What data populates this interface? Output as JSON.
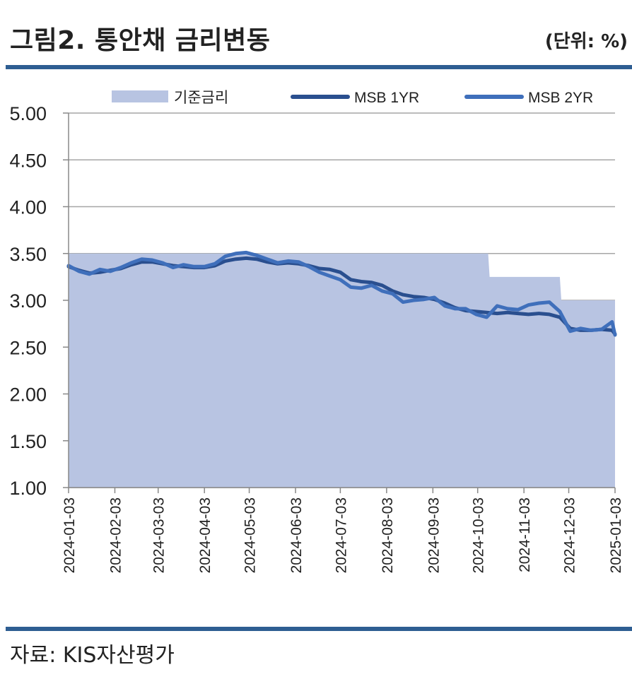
{
  "header": {
    "title": "그림2. 통안채 금리변동",
    "unit": "(단위: %)"
  },
  "footer": {
    "source": "자료: KIS자산평가"
  },
  "colors": {
    "base_fill": "#b8c4e2",
    "msb1": "#2a4f8f",
    "msb2": "#3f6fbb",
    "rule": "#2e5e92",
    "grid": "#a6a6a6"
  },
  "chart_data": {
    "type": "line",
    "title": "통안채 금리변동",
    "xlabel": "",
    "ylabel": "",
    "ylim": [
      1.0,
      5.0
    ],
    "yticks": [
      "1.00",
      "1.50",
      "2.00",
      "2.50",
      "3.00",
      "3.50",
      "4.00",
      "4.50",
      "5.00"
    ],
    "xticks": [
      "2024-01-03",
      "2024-02-03",
      "2024-03-03",
      "2024-04-03",
      "2024-05-03",
      "2024-06-03",
      "2024-07-03",
      "2024-08-03",
      "2024-09-03",
      "2024-10-03",
      "2024-11-03",
      "2024-12-03",
      "2025-01-03"
    ],
    "grid": true,
    "legend": "top",
    "base_rate": {
      "name": "기준금리",
      "type": "area",
      "steps": [
        {
          "from": "2024-01-03",
          "to": "2024-10-10",
          "value": 3.5
        },
        {
          "from": "2024-10-11",
          "to": "2024-11-27",
          "value": 3.25
        },
        {
          "from": "2024-11-28",
          "to": "2025-01-03",
          "value": 3.0
        }
      ]
    },
    "series": [
      {
        "name": "MSB 1YR",
        "dates": [
          "2024-01-03",
          "2024-01-10",
          "2024-01-17",
          "2024-01-24",
          "2024-01-31",
          "2024-02-07",
          "2024-02-14",
          "2024-02-21",
          "2024-02-28",
          "2024-03-06",
          "2024-03-13",
          "2024-03-20",
          "2024-03-27",
          "2024-04-03",
          "2024-04-10",
          "2024-04-17",
          "2024-04-24",
          "2024-05-01",
          "2024-05-08",
          "2024-05-15",
          "2024-05-22",
          "2024-05-29",
          "2024-06-05",
          "2024-06-12",
          "2024-06-19",
          "2024-06-26",
          "2024-07-03",
          "2024-07-10",
          "2024-07-17",
          "2024-07-24",
          "2024-07-31",
          "2024-08-07",
          "2024-08-14",
          "2024-08-21",
          "2024-08-28",
          "2024-09-04",
          "2024-09-11",
          "2024-09-18",
          "2024-09-25",
          "2024-10-02",
          "2024-10-09",
          "2024-10-16",
          "2024-10-23",
          "2024-10-30",
          "2024-11-06",
          "2024-11-13",
          "2024-11-20",
          "2024-11-27",
          "2024-12-04",
          "2024-12-11",
          "2024-12-18",
          "2024-12-25",
          "2025-01-01",
          "2025-01-03"
        ],
        "values": [
          3.36,
          3.32,
          3.29,
          3.3,
          3.32,
          3.34,
          3.38,
          3.41,
          3.41,
          3.39,
          3.37,
          3.36,
          3.35,
          3.35,
          3.37,
          3.42,
          3.44,
          3.45,
          3.44,
          3.41,
          3.39,
          3.4,
          3.39,
          3.37,
          3.34,
          3.33,
          3.3,
          3.22,
          3.2,
          3.19,
          3.16,
          3.1,
          3.06,
          3.04,
          3.03,
          3.01,
          2.97,
          2.92,
          2.89,
          2.88,
          2.87,
          2.86,
          2.87,
          2.86,
          2.85,
          2.86,
          2.85,
          2.82,
          2.7,
          2.68,
          2.68,
          2.69,
          2.68,
          2.64
        ]
      },
      {
        "name": "MSB 2YR",
        "dates": [
          "2024-01-03",
          "2024-01-10",
          "2024-01-17",
          "2024-01-24",
          "2024-01-31",
          "2024-02-07",
          "2024-02-14",
          "2024-02-21",
          "2024-02-28",
          "2024-03-06",
          "2024-03-13",
          "2024-03-20",
          "2024-03-27",
          "2024-04-03",
          "2024-04-10",
          "2024-04-17",
          "2024-04-24",
          "2024-05-01",
          "2024-05-08",
          "2024-05-15",
          "2024-05-22",
          "2024-05-29",
          "2024-06-05",
          "2024-06-12",
          "2024-06-19",
          "2024-06-26",
          "2024-07-03",
          "2024-07-10",
          "2024-07-17",
          "2024-07-24",
          "2024-07-31",
          "2024-08-07",
          "2024-08-14",
          "2024-08-21",
          "2024-08-28",
          "2024-09-04",
          "2024-09-11",
          "2024-09-18",
          "2024-09-25",
          "2024-10-02",
          "2024-10-09",
          "2024-10-16",
          "2024-10-23",
          "2024-10-30",
          "2024-11-06",
          "2024-11-13",
          "2024-11-20",
          "2024-11-27",
          "2024-12-04",
          "2024-12-11",
          "2024-12-18",
          "2024-12-25",
          "2025-01-01",
          "2025-01-03"
        ],
        "values": [
          3.37,
          3.31,
          3.28,
          3.33,
          3.31,
          3.35,
          3.4,
          3.44,
          3.43,
          3.4,
          3.35,
          3.38,
          3.36,
          3.36,
          3.39,
          3.47,
          3.5,
          3.51,
          3.48,
          3.44,
          3.4,
          3.42,
          3.41,
          3.36,
          3.3,
          3.26,
          3.22,
          3.14,
          3.13,
          3.16,
          3.1,
          3.07,
          2.98,
          3.0,
          3.01,
          3.03,
          2.94,
          2.91,
          2.91,
          2.85,
          2.82,
          2.94,
          2.91,
          2.9,
          2.95,
          2.97,
          2.98,
          2.88,
          2.67,
          2.7,
          2.68,
          2.69,
          2.77,
          2.63
        ]
      }
    ]
  }
}
